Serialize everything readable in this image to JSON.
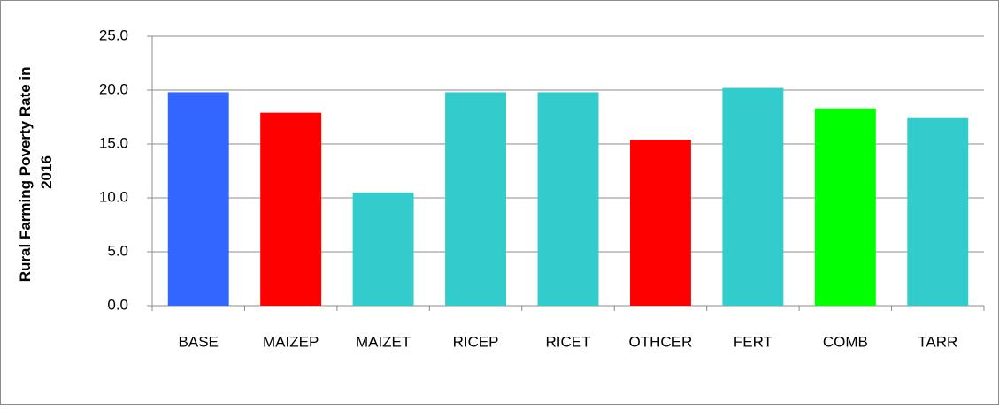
{
  "chart_data": {
    "type": "bar",
    "y_label": [
      "Rural Farming Poverty Rate in",
      "2016"
    ],
    "categories": [
      "BASE",
      "MAIZEP",
      "MAIZET",
      "RICEP",
      "RICET",
      "OTHCER",
      "FERT",
      "COMB",
      "TARR"
    ],
    "values": [
      19.8,
      17.9,
      10.5,
      19.8,
      19.8,
      15.4,
      20.2,
      18.3,
      17.4
    ],
    "colors": [
      "#3366ff",
      "#ff0000",
      "#33cccc",
      "#33cccc",
      "#33cccc",
      "#ff0000",
      "#33cccc",
      "#00ff00",
      "#33cccc"
    ],
    "ylim": [
      0,
      25
    ],
    "yticks": [
      {
        "value": 0,
        "label": "0.0"
      },
      {
        "value": 5,
        "label": "5.0"
      },
      {
        "value": 10,
        "label": "10.0"
      },
      {
        "value": 15,
        "label": "15.0"
      },
      {
        "value": 20,
        "label": "20.0"
      },
      {
        "value": 25,
        "label": "25.0"
      }
    ],
    "grid": true
  }
}
